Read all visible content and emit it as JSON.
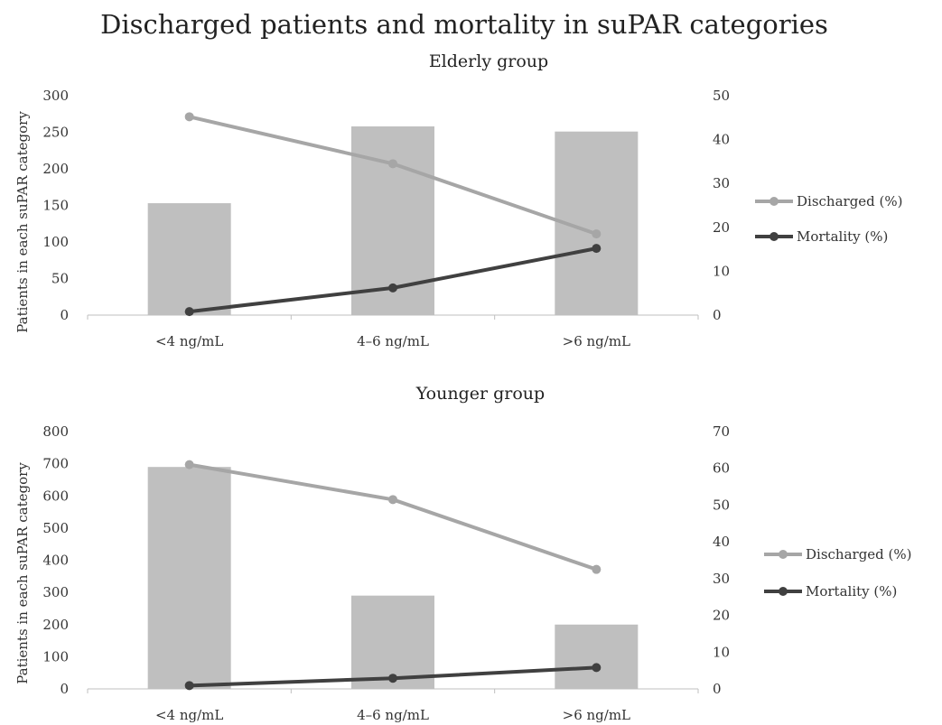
{
  "title": "Discharged patients and mortality in suPAR categories",
  "colors": {
    "bars": "#bfbfbf",
    "discharged": "#a6a6a6",
    "mortality": "#404040",
    "axis": "#bfbfbf"
  },
  "chart_data": [
    {
      "type": "bar",
      "title": "Elderly group",
      "ylabel": "Patients in each suPAR category",
      "categories": [
        "<4 ng/mL",
        "4–6 ng/mL",
        ">6 ng/mL"
      ],
      "ylim": [
        0,
        300
      ],
      "yticks": [
        0,
        50,
        100,
        150,
        200,
        250,
        300
      ],
      "y2lim": [
        0,
        50
      ],
      "y2ticks": [
        0,
        10,
        20,
        30,
        40,
        50
      ],
      "grid": false,
      "legend_position": "right",
      "bar_values": [
        153,
        258,
        251
      ],
      "series": [
        {
          "name": "Discharged (%)",
          "type": "line",
          "axis": "right",
          "values": [
            45.2,
            34.5,
            18.5
          ]
        },
        {
          "name": "Mortality (%)",
          "type": "line",
          "axis": "right",
          "values": [
            0.8,
            6.2,
            15.2
          ]
        }
      ]
    },
    {
      "type": "bar",
      "title": "Younger group",
      "ylabel": "Patients in each suPAR category",
      "categories": [
        "<4 ng/mL",
        "4–6 ng/mL",
        ">6 ng/mL"
      ],
      "ylim": [
        0,
        800
      ],
      "yticks": [
        0,
        100,
        200,
        300,
        400,
        500,
        600,
        700,
        800
      ],
      "y2lim": [
        0,
        70
      ],
      "y2ticks": [
        0,
        10,
        20,
        30,
        40,
        50,
        60,
        70
      ],
      "grid": false,
      "legend_position": "right",
      "bar_values": [
        690,
        290,
        200
      ],
      "series": [
        {
          "name": "Discharged (%)",
          "type": "line",
          "axis": "right",
          "values": [
            61.0,
            51.5,
            32.5
          ]
        },
        {
          "name": "Mortality (%)",
          "type": "line",
          "axis": "right",
          "values": [
            0.9,
            2.9,
            5.8
          ]
        }
      ]
    }
  ]
}
